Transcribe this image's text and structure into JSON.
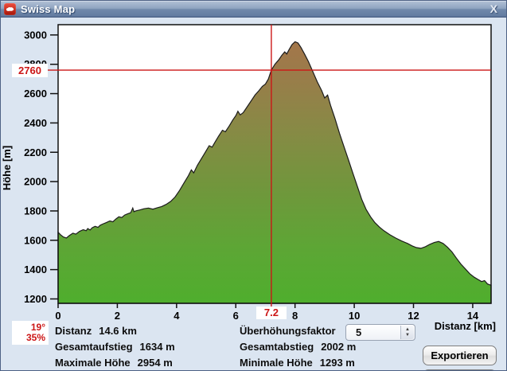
{
  "window": {
    "title": "Swiss Map"
  },
  "icons": {
    "close": "X",
    "spinner_up": "▲",
    "spinner_down": "▼"
  },
  "chart": {
    "y_axis_title": "Höhe [m]",
    "x_axis_title": "Distanz [km]",
    "crosshair": {
      "x_label": "7.2",
      "y_label": "2760",
      "slope_deg": "19°",
      "slope_pct": "35%"
    }
  },
  "chart_data": {
    "type": "area",
    "title": "",
    "xlabel": "Distanz [km]",
    "ylabel": "Höhe [m]",
    "xlim": [
      0,
      14.62
    ],
    "ylim": [
      1170,
      3070
    ],
    "x_ticks": [
      0,
      2,
      4,
      6,
      8,
      10,
      12,
      14
    ],
    "y_ticks": [
      1200,
      1400,
      1600,
      1800,
      2000,
      2200,
      2400,
      2600,
      2800,
      3000
    ],
    "grid": false,
    "crosshair": {
      "x": 7.2,
      "y": 2760
    },
    "x": [
      0,
      0.08,
      0.18,
      0.28,
      0.38,
      0.5,
      0.6,
      0.72,
      0.85,
      0.95,
      1.0,
      1.08,
      1.15,
      1.25,
      1.35,
      1.42,
      1.5,
      1.62,
      1.75,
      1.85,
      1.95,
      2.05,
      2.15,
      2.25,
      2.35,
      2.45,
      2.52,
      2.56,
      2.62,
      2.75,
      2.9,
      3.05,
      3.2,
      3.35,
      3.5,
      3.65,
      3.8,
      3.95,
      4.1,
      4.25,
      4.4,
      4.5,
      4.58,
      4.7,
      4.85,
      5.0,
      5.1,
      5.2,
      5.3,
      5.42,
      5.55,
      5.65,
      5.78,
      5.9,
      6.0,
      6.07,
      6.15,
      6.25,
      6.35,
      6.45,
      6.55,
      6.65,
      6.78,
      6.9,
      7.0,
      7.1,
      7.2,
      7.32,
      7.45,
      7.55,
      7.65,
      7.72,
      7.8,
      7.9,
      8.0,
      8.1,
      8.2,
      8.32,
      8.45,
      8.6,
      8.75,
      8.9,
      9.0,
      9.1,
      9.2,
      9.35,
      9.5,
      9.65,
      9.8,
      9.95,
      10.1,
      10.25,
      10.4,
      10.55,
      10.7,
      10.85,
      11.0,
      11.2,
      11.4,
      11.6,
      11.8,
      11.95,
      12.1,
      12.25,
      12.4,
      12.55,
      12.7,
      12.85,
      13.0,
      13.15,
      13.3,
      13.45,
      13.6,
      13.75,
      13.9,
      14.05,
      14.2,
      14.3,
      14.4,
      14.5,
      14.62
    ],
    "y": [
      1655,
      1638,
      1622,
      1615,
      1632,
      1648,
      1642,
      1660,
      1672,
      1665,
      1680,
      1670,
      1685,
      1695,
      1688,
      1702,
      1710,
      1720,
      1732,
      1726,
      1745,
      1760,
      1755,
      1772,
      1780,
      1788,
      1820,
      1795,
      1800,
      1806,
      1815,
      1820,
      1812,
      1822,
      1830,
      1845,
      1865,
      1895,
      1940,
      1990,
      2040,
      2080,
      2060,
      2110,
      2160,
      2210,
      2245,
      2235,
      2270,
      2310,
      2350,
      2340,
      2380,
      2420,
      2450,
      2480,
      2455,
      2470,
      2500,
      2530,
      2560,
      2590,
      2620,
      2650,
      2665,
      2700,
      2760,
      2800,
      2830,
      2860,
      2885,
      2870,
      2900,
      2935,
      2954,
      2945,
      2915,
      2870,
      2820,
      2750,
      2680,
      2620,
      2570,
      2590,
      2520,
      2430,
      2330,
      2240,
      2150,
      2060,
      1970,
      1880,
      1810,
      1760,
      1720,
      1690,
      1665,
      1638,
      1615,
      1595,
      1578,
      1562,
      1550,
      1545,
      1556,
      1572,
      1585,
      1592,
      1578,
      1552,
      1520,
      1478,
      1438,
      1405,
      1372,
      1348,
      1330,
      1318,
      1325,
      1302,
      1293
    ],
    "colors": {
      "crosshair": "#cc1616",
      "outline": "#1b1b1b",
      "plot_background": "#ffffff",
      "gradient": [
        [
          "0%",
          "#a8734a"
        ],
        [
          "18%",
          "#9a7c4a"
        ],
        [
          "38%",
          "#878a45"
        ],
        [
          "58%",
          "#71963c"
        ],
        [
          "80%",
          "#5da635"
        ],
        [
          "100%",
          "#4fae2d"
        ]
      ]
    }
  },
  "stats": {
    "col1": [
      {
        "label": "Distanz",
        "value": "14.6 km"
      },
      {
        "label": "Gesamtaufstieg",
        "value": "1634 m"
      },
      {
        "label": "Maximale Höhe",
        "value": "2954 m"
      }
    ],
    "col2": [
      {
        "label": "Überhöhungsfaktor",
        "value": ""
      },
      {
        "label": "Gesamtabstieg",
        "value": "2002 m"
      },
      {
        "label": "Minimale Höhe",
        "value": "1293 m"
      }
    ]
  },
  "controls": {
    "exaggeration_value": "5",
    "export_label": "Exportieren"
  }
}
